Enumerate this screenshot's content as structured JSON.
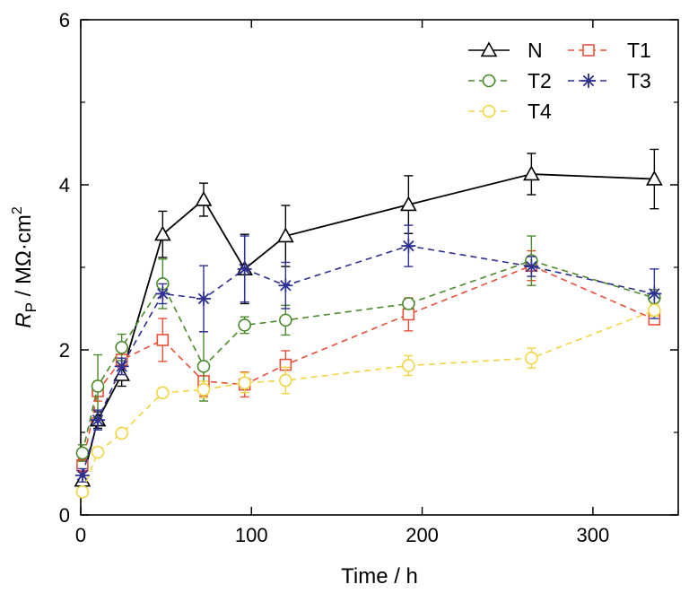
{
  "chart_data": {
    "type": "line",
    "title": "",
    "xlabel": "Time / h",
    "ylabel": {
      "symbol": "R",
      "subscript": "P",
      "unit": " / MΩ·cm",
      "superscript": "2"
    },
    "xlim": [
      0,
      350
    ],
    "ylim": [
      0,
      6
    ],
    "xticks": [
      0,
      100,
      200,
      300
    ],
    "yticks": [
      0,
      2,
      4,
      6
    ],
    "legend": {
      "placement": "top-right",
      "columns": 2
    },
    "grid": false,
    "series": [
      {
        "name": "N",
        "marker": "triangle",
        "color": "#000000",
        "line": "solid",
        "x": [
          1,
          10,
          24,
          48,
          72,
          96,
          120,
          192,
          264,
          336
        ],
        "y": [
          0.42,
          1.15,
          1.7,
          3.4,
          3.82,
          2.98,
          3.38,
          3.76,
          4.13,
          4.07
        ],
        "err": [
          0.1,
          0.1,
          0.14,
          0.28,
          0.2,
          0.42,
          0.37,
          0.35,
          0.25,
          0.36
        ]
      },
      {
        "name": "T1",
        "marker": "square",
        "color": "#e8503a",
        "line": "dashed",
        "x": [
          1,
          10,
          24,
          48,
          72,
          96,
          120,
          192,
          264,
          336
        ],
        "y": [
          0.6,
          1.5,
          1.88,
          2.12,
          1.62,
          1.58,
          1.82,
          2.43,
          3.02,
          2.37
        ],
        "err": [
          0.08,
          0.12,
          0.1,
          0.26,
          0.18,
          0.15,
          0.17,
          0.2,
          0.18,
          0.05
        ]
      },
      {
        "name": "T2",
        "marker": "circle",
        "color": "#4a8a2a",
        "line": "dashed",
        "x": [
          1,
          10,
          24,
          48,
          72,
          96,
          120,
          192,
          264,
          336
        ],
        "y": [
          0.75,
          1.56,
          2.03,
          2.8,
          1.8,
          2.3,
          2.36,
          2.56,
          3.08,
          2.63
        ],
        "err": [
          0.1,
          0.38,
          0.16,
          0.3,
          0.42,
          0.1,
          0.18,
          0.06,
          0.3,
          0.1
        ]
      },
      {
        "name": "T3",
        "marker": "star",
        "color": "#2e3192",
        "line": "dashed",
        "x": [
          1,
          10,
          24,
          48,
          72,
          96,
          120,
          192,
          264,
          336
        ],
        "y": [
          0.48,
          1.15,
          1.8,
          2.68,
          2.62,
          2.98,
          2.78,
          3.26,
          3.01,
          2.68
        ],
        "err": [
          0.08,
          0.12,
          0.1,
          0.12,
          0.4,
          0.4,
          0.28,
          0.25,
          0.12,
          0.3
        ]
      },
      {
        "name": "T4",
        "marker": "circle",
        "color": "#f0d540",
        "line": "dashed",
        "x": [
          1,
          10,
          24,
          48,
          72,
          96,
          120,
          192,
          264,
          336
        ],
        "y": [
          0.28,
          0.76,
          0.99,
          1.48,
          1.52,
          1.6,
          1.63,
          1.81,
          1.9,
          2.48
        ],
        "err": [
          0.04,
          0.05,
          0.05,
          0.06,
          0.1,
          0.12,
          0.16,
          0.12,
          0.12,
          0.07
        ]
      }
    ]
  }
}
